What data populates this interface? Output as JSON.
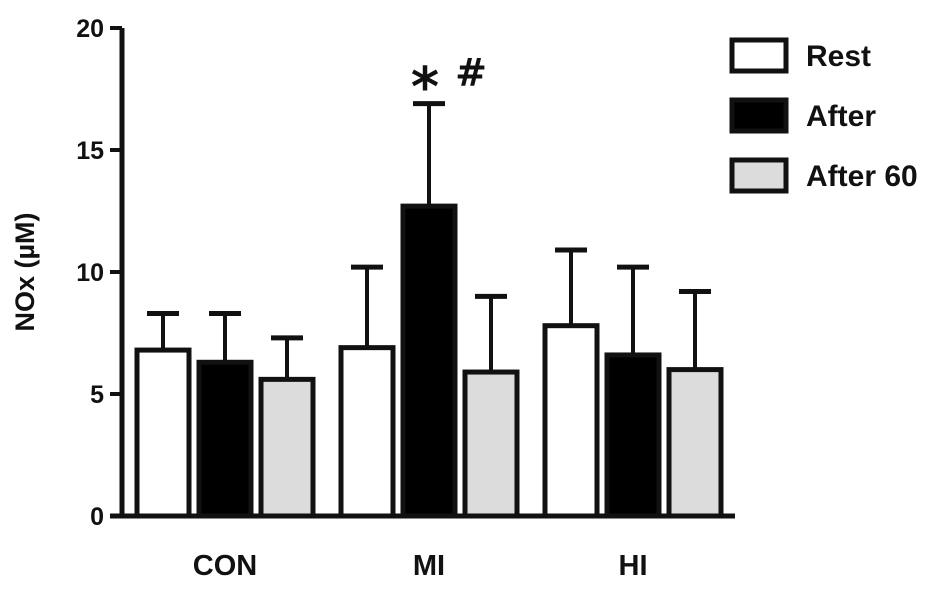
{
  "chart_data": {
    "type": "bar",
    "title": "",
    "xlabel": "",
    "ylabel": "NOx (µM)",
    "ylim": [
      0,
      20
    ],
    "yticks": [
      0,
      5,
      10,
      15,
      20
    ],
    "grid": false,
    "legend_position": "top-right",
    "categories": [
      "CON",
      "MI",
      "HI"
    ],
    "series": [
      {
        "name": "Rest",
        "color": "#ffffff",
        "values": [
          6.8,
          6.9,
          7.8
        ],
        "errors_upper": [
          8.3,
          10.2,
          10.9
        ]
      },
      {
        "name": "After",
        "color": "#000000",
        "values": [
          6.3,
          12.7,
          6.6
        ],
        "errors_upper": [
          8.3,
          16.9,
          10.2
        ]
      },
      {
        "name": "After 60",
        "color": "#dcdcdc",
        "values": [
          5.6,
          5.9,
          6.0
        ],
        "errors_upper": [
          7.3,
          9.0,
          9.2
        ]
      }
    ],
    "annotations": [
      {
        "category": "MI",
        "series": "After",
        "symbols": [
          "*",
          "#"
        ]
      }
    ]
  }
}
